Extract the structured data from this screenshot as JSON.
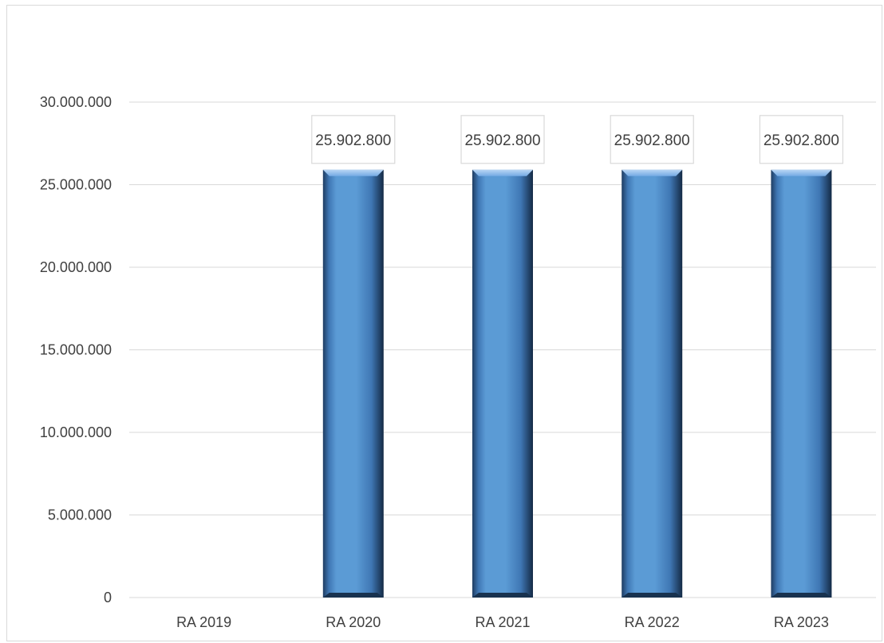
{
  "chart_data": {
    "type": "bar",
    "title": "",
    "xlabel": "",
    "ylabel": "",
    "categories": [
      "RA 2019",
      "RA 2020",
      "RA 2021",
      "RA 2022",
      "RA 2023"
    ],
    "series": [
      {
        "values": [
          0,
          25902800,
          25902800,
          25902800,
          25902800
        ],
        "data_labels": [
          "",
          "25.902.800",
          "25.902.800",
          "25.902.800",
          "25.902.800"
        ]
      }
    ],
    "ylim": [
      0,
      30000000
    ],
    "yticks": [
      0,
      5000000,
      10000000,
      15000000,
      20000000,
      25000000,
      30000000
    ],
    "ytick_labels": [
      "0",
      "5.000.000",
      "10.000.000",
      "15.000.000",
      "20.000.000",
      "25.000.000",
      "30.000.000"
    ],
    "grid": true,
    "legend": "none",
    "colors": {
      "bar_light": "#8ab8ea",
      "bar_mid": "#5b9bd5",
      "bar_dark": "#1f3d62",
      "grid": "#d9d9d9",
      "text": "#404040"
    }
  }
}
